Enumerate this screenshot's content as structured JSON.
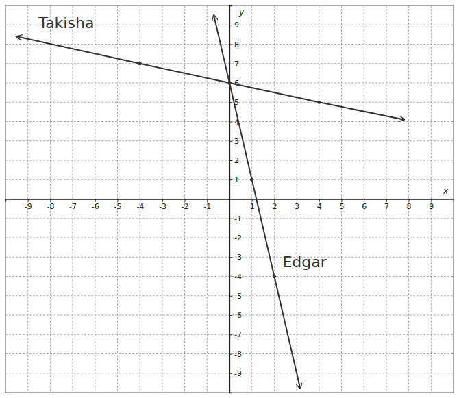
{
  "chart_data": {
    "type": "line",
    "x_label": "x",
    "y_label": "y",
    "xlim": [
      -10,
      10
    ],
    "ylim": [
      -10,
      10
    ],
    "xticks": [
      -9,
      -8,
      -7,
      -6,
      -5,
      -4,
      -3,
      -2,
      -1,
      1,
      2,
      3,
      4,
      5,
      6,
      7,
      8,
      9
    ],
    "yticks": [
      -9,
      -8,
      -7,
      -6,
      -5,
      -4,
      -3,
      -2,
      -1,
      1,
      2,
      3,
      4,
      5,
      6,
      7,
      8,
      9
    ],
    "grid": true,
    "series": [
      {
        "name": "Takisha",
        "color": "#333333",
        "marker": "arrow",
        "line_style": "solid",
        "x": [
          -9.5,
          -4,
          0,
          4,
          7.8
        ],
        "values": [
          8.4,
          7,
          6,
          5,
          4.1
        ]
      },
      {
        "name": "Edgar",
        "color": "#333333",
        "marker": "arrow",
        "line_style": "solid",
        "x": [
          -0.7,
          0,
          1,
          2,
          3.16
        ],
        "values": [
          9.5,
          6,
          1,
          -4,
          -9.8
        ]
      }
    ]
  }
}
